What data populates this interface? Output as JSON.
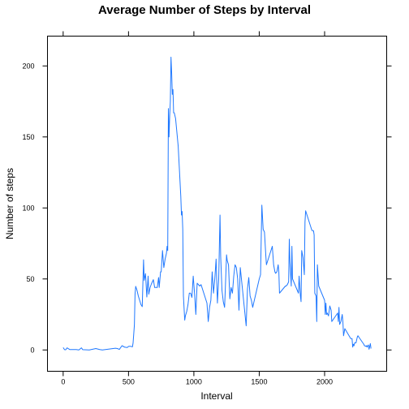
{
  "chart_data": {
    "type": "line",
    "title": "Average Number of Steps by Interval",
    "xlabel": "Interval",
    "ylabel": "Number of steps",
    "xlim": [
      -120,
      2475
    ],
    "ylim": [
      -15,
      221
    ],
    "x_ticks": [
      0,
      500,
      1000,
      1500,
      2000
    ],
    "y_ticks": [
      0,
      50,
      100,
      150,
      200
    ],
    "x_tick_labels": [
      "0",
      "500",
      "1000",
      "1500",
      "2000"
    ],
    "y_tick_labels": [
      "0",
      "50",
      "100",
      "150",
      "200"
    ],
    "grid": false,
    "series": [
      {
        "color": "#1f78ff",
        "x": [
          0,
          10,
          15,
          20,
          30,
          50,
          100,
          120,
          140,
          150,
          200,
          250,
          280,
          300,
          400,
          415,
          430,
          450,
          470,
          490,
          500,
          505,
          515,
          530,
          535,
          545,
          550,
          555,
          565,
          575,
          585,
          595,
          605,
          615,
          620,
          630,
          640,
          650,
          655,
          665,
          675,
          690,
          700,
          715,
          720,
          730,
          735,
          745,
          750,
          760,
          770,
          780,
          790,
          795,
          800,
          805,
          810,
          815,
          820,
          825,
          830,
          835,
          840,
          845,
          850,
          855,
          860,
          880,
          900,
          905,
          910,
          915,
          920,
          930,
          935,
          945,
          955,
          965,
          975,
          985,
          995,
          1005,
          1015,
          1025,
          1035,
          1045,
          1055,
          1100,
          1110,
          1120,
          1130,
          1140,
          1150,
          1160,
          1170,
          1180,
          1190,
          1200,
          1205,
          1215,
          1225,
          1235,
          1240,
          1250,
          1255,
          1265,
          1275,
          1285,
          1295,
          1305,
          1315,
          1325,
          1335,
          1345,
          1355,
          1400,
          1410,
          1420,
          1430,
          1440,
          1450,
          1500,
          1510,
          1520,
          1530,
          1540,
          1545,
          1550,
          1555,
          1600,
          1610,
          1620,
          1625,
          1635,
          1645,
          1650,
          1655,
          1700,
          1705,
          1715,
          1725,
          1730,
          1735,
          1745,
          1750,
          1755,
          1800,
          1805,
          1815,
          1820,
          1825,
          1835,
          1845,
          1850,
          1855,
          1900,
          1905,
          1915,
          1920,
          1925,
          1935,
          1940,
          1945,
          1955,
          2000,
          2005,
          2010,
          2015,
          2020,
          2030,
          2040,
          2050,
          2055,
          2100,
          2105,
          2110,
          2115,
          2125,
          2135,
          2140,
          2145,
          2155,
          2200,
          2210,
          2215,
          2220,
          2225,
          2230,
          2240,
          2250,
          2255,
          2300,
          2305,
          2315,
          2320,
          2325,
          2330,
          2335,
          2340,
          2345,
          2350,
          2355
        ],
        "y": [
          1.7,
          0.3,
          0.1,
          0.2,
          1.5,
          0.3,
          0.3,
          0.0,
          1.5,
          0.2,
          0.0,
          1.0,
          0.3,
          0.0,
          1.2,
          1.0,
          0.4,
          3.0,
          2.0,
          1.7,
          2.5,
          2.6,
          2.6,
          2.2,
          5.0,
          17.6,
          39.5,
          44.8,
          42.0,
          38.0,
          35.0,
          32.0,
          30.5,
          63.5,
          49.0,
          53.8,
          37.3,
          52.0,
          39.3,
          44.0,
          46.5,
          49.5,
          44.0,
          44.0,
          44.0,
          51.0,
          44.0,
          55.0,
          55.0,
          70.0,
          58.0,
          64.0,
          68.0,
          73.0,
          70.0,
          170.0,
          150.0,
          165.0,
          175.0,
          206.2,
          195.0,
          180.0,
          183.4,
          167.0,
          167.0,
          165.0,
          163.0,
          143.5,
          108.0,
          95.0,
          97.5,
          85.0,
          38.0,
          21.0,
          24.0,
          27.0,
          32.0,
          40.0,
          40.0,
          37.0,
          52.0,
          40.0,
          25.0,
          47.0,
          46.0,
          45.0,
          46.0,
          33.0,
          20.0,
          30.0,
          35.0,
          55.0,
          40.0,
          50.0,
          64.0,
          33.0,
          50.0,
          95.0,
          66.0,
          42.0,
          34.0,
          30.0,
          42.0,
          67.0,
          63.0,
          60.0,
          36.0,
          44.0,
          40.0,
          52.0,
          60.0,
          58.0,
          50.0,
          28.0,
          58.0,
          17.0,
          43.0,
          51.0,
          38.0,
          35.0,
          30.0,
          50.0,
          53.0,
          102.0,
          85.0,
          83.0,
          75.0,
          67.0,
          60.0,
          73.0,
          60.0,
          55.0,
          54.0,
          55.0,
          60.0,
          55.0,
          40.0,
          45.0,
          45.0,
          46.0,
          48.0,
          78.0,
          62.0,
          45.0,
          73.0,
          50.0,
          40.0,
          52.0,
          38.0,
          34.0,
          70.0,
          65.0,
          53.0,
          90.0,
          98.0,
          85.0,
          84.0,
          84.0,
          81.0,
          40.0,
          38.0,
          20.0,
          60.0,
          45.0,
          35.0,
          25.0,
          33.0,
          25.0,
          26.0,
          24.0,
          31.0,
          28.0,
          20.0,
          26.0,
          20.0,
          30.0,
          18.0,
          20.0,
          25.0,
          20.0,
          10.0,
          15.0,
          8.0,
          8.0,
          2.0,
          4.0,
          3.0,
          5.0,
          5.0,
          9.0,
          10.0,
          4.0,
          3.0,
          2.6,
          3.0,
          2.0,
          3.0,
          3.5,
          0.5,
          2.5,
          4.5,
          1.0
        ]
      }
    ]
  }
}
